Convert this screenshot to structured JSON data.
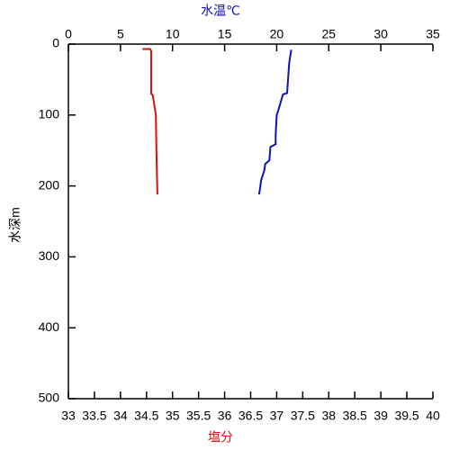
{
  "chart_data": {
    "type": "line",
    "xlabel": "塩分",
    "x2label": "水温℃",
    "ylabel": "水深m",
    "xlim": [
      33,
      40
    ],
    "xticks": [
      33,
      33.5,
      34,
      34.5,
      35,
      35.5,
      36,
      36.5,
      37,
      37.5,
      38,
      38.5,
      39,
      39.5,
      40
    ],
    "x2lim": [
      0,
      35
    ],
    "x2ticks": [
      0,
      5,
      10,
      15,
      20,
      25,
      30,
      35
    ],
    "ylim": [
      0,
      500
    ],
    "yticks": [
      0,
      100,
      200,
      300,
      400,
      500
    ],
    "y_inverted": true,
    "series": [
      {
        "color": "#dd1111",
        "axis": "x",
        "x": [
          34.42,
          34.57,
          34.59,
          34.59,
          34.59,
          34.62,
          34.66,
          34.68,
          34.69,
          34.71
        ],
        "values": [
          7,
          7,
          10,
          30,
          70,
          72,
          90,
          100,
          150,
          212
        ]
      },
      {
        "color": "#1111bb",
        "axis": "x2",
        "x": [
          21.4,
          21.2,
          21.0,
          20.6,
          20.1,
          20.0,
          19.9,
          19.9,
          19.4,
          19.3,
          18.9,
          18.8,
          18.5,
          18.4,
          18.3
        ],
        "values": [
          8,
          27,
          69,
          71,
          96,
          100,
          128,
          141,
          145,
          164,
          169,
          179,
          192,
          204,
          212
        ]
      }
    ]
  }
}
